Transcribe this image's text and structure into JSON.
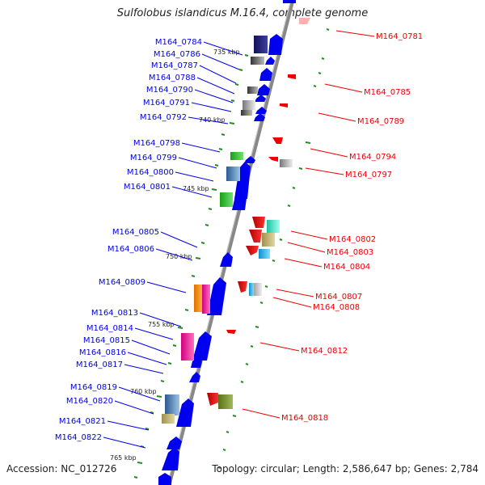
{
  "title": "Sulfolobus islandicus M.16.4, complete genome",
  "footer": {
    "accession": "Accession: NC_012726",
    "summary": "Topology: circular; Length: 2,586,647 bp; Genes: 2,784"
  },
  "kbp_labels": [
    "735 kbp",
    "740 kbp",
    "745 kbp",
    "750 kbp",
    "755 kbp",
    "760 kbp",
    "765 kbp"
  ],
  "left_genes": [
    "M164_0784",
    "M164_0786",
    "M164_0787",
    "M164_0788",
    "M164_0790",
    "M164_0791",
    "M164_0792",
    "M164_0798",
    "M164_0799",
    "M164_0800",
    "M164_0801",
    "M164_0805",
    "M164_0806",
    "M164_0809",
    "M164_0813",
    "M164_0814",
    "M164_0815",
    "M164_0816",
    "M164_0817",
    "M164_0819",
    "M164_0820",
    "M164_0821",
    "M164_0822"
  ],
  "right_genes": [
    "M164_0781",
    "M164_0785",
    "M164_0789",
    "M164_0794",
    "M164_0797",
    "M164_0802",
    "M164_0803",
    "M164_0804",
    "M164_0807",
    "M164_0808",
    "M164_0812",
    "M164_0818"
  ],
  "colors": {
    "forward_strand": "#0000ee",
    "reverse_strand": "#ee0000",
    "scale_ticks": "#228b22",
    "backbone": "#888888"
  }
}
